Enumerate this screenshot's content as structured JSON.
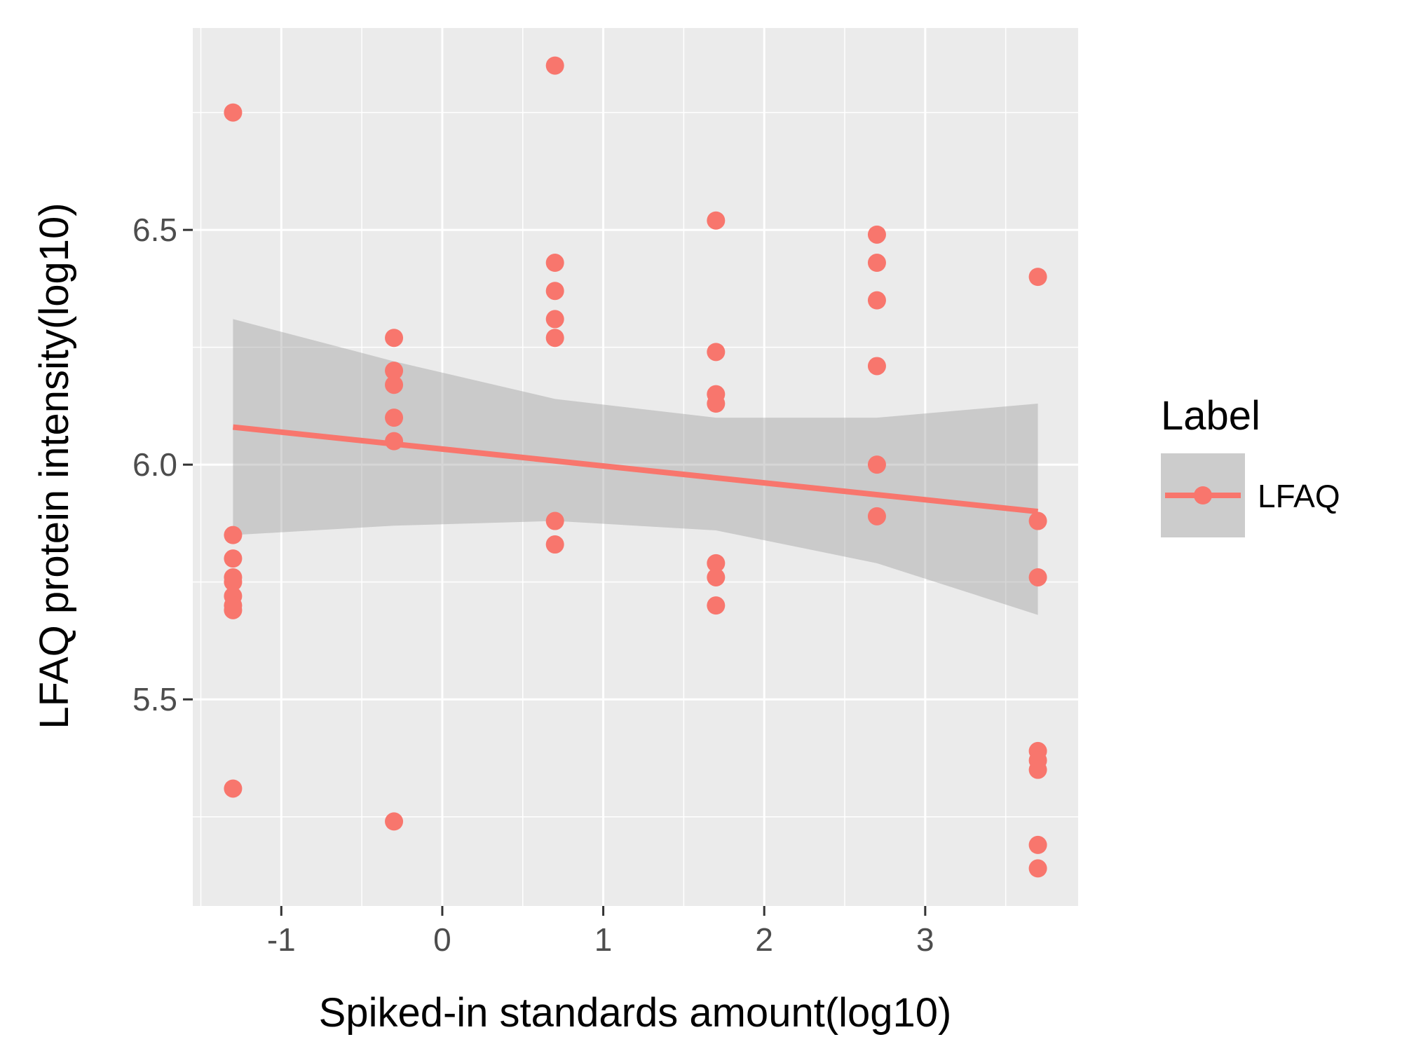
{
  "chart_data": {
    "type": "scatter",
    "xlabel": "Spiked-in standards amount(log10)",
    "ylabel": "LFAQ protein intensity(log10)",
    "xlim": [
      -1.55,
      3.95
    ],
    "ylim": [
      5.06,
      6.93
    ],
    "x_ticks": [
      -1,
      0,
      1,
      2,
      3
    ],
    "x_tick_labels": [
      "-1",
      "0",
      "1",
      "2",
      "3"
    ],
    "y_ticks": [
      5.5,
      6.0,
      6.5
    ],
    "y_tick_labels": [
      "5.5",
      "6.0",
      "6.5"
    ],
    "grid": true,
    "legend": {
      "title": "Label",
      "placement": "right",
      "entries": [
        "LFAQ"
      ]
    },
    "series": [
      {
        "name": "LFAQ",
        "color": "#F8766D",
        "points": [
          [
            -1.3,
            6.75
          ],
          [
            -1.3,
            5.85
          ],
          [
            -1.3,
            5.8
          ],
          [
            -1.3,
            5.76
          ],
          [
            -1.3,
            5.75
          ],
          [
            -1.3,
            5.72
          ],
          [
            -1.3,
            5.7
          ],
          [
            -1.3,
            5.69
          ],
          [
            -1.3,
            5.31
          ],
          [
            -0.3,
            6.27
          ],
          [
            -0.3,
            6.2
          ],
          [
            -0.3,
            6.17
          ],
          [
            -0.3,
            6.1
          ],
          [
            -0.3,
            6.05
          ],
          [
            -0.3,
            5.24
          ],
          [
            0.7,
            6.85
          ],
          [
            0.7,
            6.43
          ],
          [
            0.7,
            6.37
          ],
          [
            0.7,
            6.31
          ],
          [
            0.7,
            6.27
          ],
          [
            0.7,
            5.88
          ],
          [
            0.7,
            5.83
          ],
          [
            1.7,
            6.52
          ],
          [
            1.7,
            6.24
          ],
          [
            1.7,
            6.15
          ],
          [
            1.7,
            6.13
          ],
          [
            1.7,
            5.79
          ],
          [
            1.7,
            5.76
          ],
          [
            1.7,
            5.7
          ],
          [
            2.7,
            6.49
          ],
          [
            2.7,
            6.43
          ],
          [
            2.7,
            6.35
          ],
          [
            2.7,
            6.21
          ],
          [
            2.7,
            6.0
          ],
          [
            2.7,
            5.89
          ],
          [
            3.7,
            6.4
          ],
          [
            3.7,
            5.88
          ],
          [
            3.7,
            5.76
          ],
          [
            3.7,
            5.39
          ],
          [
            3.7,
            5.37
          ],
          [
            3.7,
            5.35
          ],
          [
            3.7,
            5.19
          ],
          [
            3.7,
            5.14
          ]
        ]
      }
    ],
    "regression": {
      "type": "linear",
      "color": "#F8766D",
      "x_range": [
        -1.3,
        3.7
      ],
      "line": [
        [
          -1.3,
          6.08
        ],
        [
          3.7,
          5.9
        ]
      ]
    },
    "confidence_band": {
      "color": "#999999",
      "x": [
        -1.3,
        -0.3,
        0.7,
        1.7,
        2.7,
        3.7
      ],
      "lower": [
        5.85,
        5.87,
        5.88,
        5.86,
        5.79,
        5.68
      ],
      "upper": [
        6.31,
        6.22,
        6.14,
        6.1,
        6.1,
        6.13
      ]
    }
  }
}
